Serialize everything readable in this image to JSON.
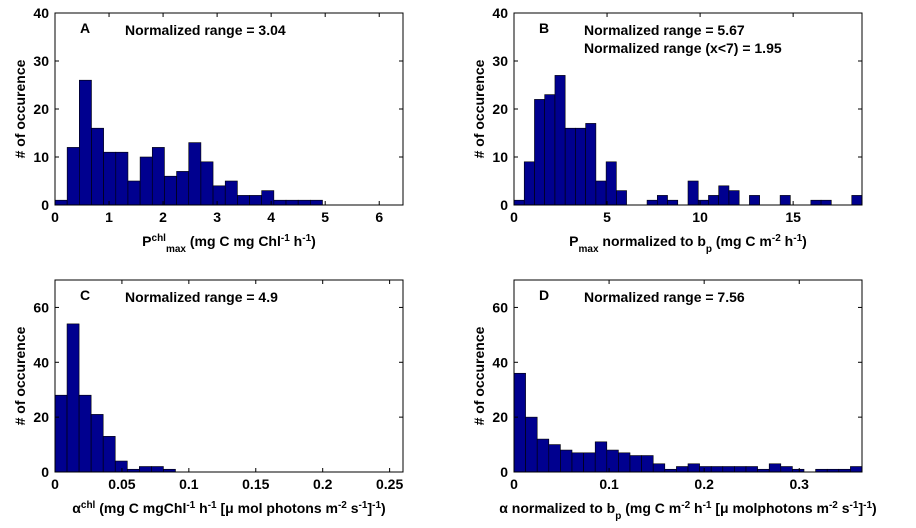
{
  "chart_data": [
    {
      "type": "histogram",
      "panel_label": "A",
      "annotations": [
        "Normalized range = 3.04"
      ],
      "xlabel": [
        "P",
        {
          "sup": "chl"
        },
        {
          "sub": "max"
        },
        " (mg C mg Chl",
        {
          "sup": "-1"
        },
        " h",
        {
          "sup": "-1"
        },
        ")"
      ],
      "ylabel": "# of occurence",
      "color": "#00008f",
      "bins": [
        0,
        0.225,
        0.45,
        0.675,
        0.9,
        1.125,
        1.35,
        1.575,
        1.8,
        2.025,
        2.25,
        2.475,
        2.7,
        2.925,
        3.15,
        3.375,
        3.6,
        3.825,
        4.05,
        4.275,
        4.5,
        4.725,
        4.95
      ],
      "counts": [
        1,
        12,
        26,
        16,
        11,
        11,
        5,
        10,
        12,
        6,
        7,
        13,
        9,
        4,
        5,
        2,
        2,
        3,
        1,
        1,
        1,
        1
      ],
      "xlim": [
        0,
        6.44
      ],
      "ylim": [
        0,
        40
      ],
      "xticks": [
        0,
        1,
        2,
        3,
        4,
        5,
        6
      ],
      "yticks": [
        0,
        10,
        20,
        30,
        40
      ]
    },
    {
      "type": "histogram",
      "panel_label": "B",
      "annotations": [
        "Normalized range = 5.67",
        "Normalized range (x<7) = 1.95"
      ],
      "xlabel": [
        "P",
        {
          "sub": "max"
        },
        " normalized to b",
        {
          "sub": "p"
        },
        " (mg C m",
        {
          "sup": "-2"
        },
        " h",
        {
          "sup": "-1"
        },
        ")"
      ],
      "ylabel": "# of occurence",
      "color": "#00008f",
      "bins": [
        0,
        0.55,
        1.1,
        1.65,
        2.2,
        2.75,
        3.3,
        3.85,
        4.4,
        4.95,
        5.5,
        6.05,
        6.6,
        7.15,
        7.7,
        8.25,
        8.8,
        9.35,
        9.9,
        10.45,
        11,
        11.55,
        12.1,
        12.65,
        13.2,
        13.75,
        14.3,
        14.85,
        15.4,
        15.95,
        16.5,
        17.05,
        17.6,
        18.15,
        18.7
      ],
      "counts": [
        1,
        9,
        22,
        23,
        27,
        16,
        16,
        17,
        5,
        9,
        3,
        0,
        0,
        1,
        2,
        1,
        0,
        5,
        1,
        2,
        4,
        3,
        0,
        2,
        0,
        0,
        2,
        0,
        0,
        1,
        1,
        0,
        0,
        2
      ],
      "xlim": [
        0,
        18.7
      ],
      "ylim": [
        0,
        40
      ],
      "xticks": [
        0,
        5,
        10,
        15
      ],
      "yticks": [
        0,
        10,
        20,
        30,
        40
      ]
    },
    {
      "type": "histogram",
      "panel_label": "C",
      "annotations": [
        "Normalized range = 4.9"
      ],
      "xlabel": [
        "α",
        {
          "sup": "chl"
        },
        " (mg C mgChl",
        {
          "sup": "-1"
        },
        " h",
        {
          "sup": "-1"
        },
        " [μ mol photons m",
        {
          "sup": "-2"
        },
        " s",
        {
          "sup": "-1"
        },
        "]",
        {
          "sup": "-1"
        },
        ")"
      ],
      "ylabel": "# of occurence",
      "color": "#00008f",
      "bins": [
        0,
        0.009,
        0.018,
        0.027,
        0.036,
        0.045,
        0.054,
        0.063,
        0.072,
        0.081,
        0.09
      ],
      "counts": [
        28,
        54,
        28,
        21,
        13,
        4,
        1,
        2,
        2,
        1
      ],
      "xlim": [
        0,
        0.26
      ],
      "ylim": [
        0,
        70
      ],
      "xticks": [
        0,
        0.05,
        0.1,
        0.15,
        0.2,
        0.25
      ],
      "yticks": [
        0,
        20,
        40,
        60
      ]
    },
    {
      "type": "histogram",
      "panel_label": "D",
      "annotations": [
        "Normalized range = 7.56"
      ],
      "xlabel": [
        "α normalized to b",
        {
          "sub": "p"
        },
        " (mg C m",
        {
          "sup": "-2"
        },
        " h",
        {
          "sup": "-1"
        },
        " [μ molphotons m",
        {
          "sup": "-2"
        },
        " s",
        {
          "sup": "-1"
        },
        "]",
        {
          "sup": "-1"
        },
        ")"
      ],
      "ylabel": "# of occurence",
      "color": "#00008f",
      "bins": [
        0,
        0.0122,
        0.0244,
        0.0366,
        0.0488,
        0.061,
        0.0732,
        0.0854,
        0.0976,
        0.1098,
        0.122,
        0.1342,
        0.1464,
        0.1586,
        0.1708,
        0.183,
        0.1952,
        0.2074,
        0.2196,
        0.2318,
        0.244,
        0.2562,
        0.2684,
        0.2806,
        0.2928,
        0.305,
        0.3172,
        0.3294,
        0.3416,
        0.3538,
        0.366
      ],
      "counts": [
        36,
        20,
        12,
        10,
        8,
        7,
        7,
        11,
        8,
        7,
        6,
        6,
        3,
        1,
        2,
        3,
        2,
        2,
        2,
        2,
        2,
        1,
        3,
        2,
        1,
        0,
        1,
        1,
        1,
        2
      ],
      "xlim": [
        0,
        0.366
      ],
      "ylim": [
        0,
        70
      ],
      "xticks": [
        0,
        0.1,
        0.2,
        0.3
      ],
      "yticks": [
        0,
        20,
        40,
        60
      ]
    }
  ]
}
